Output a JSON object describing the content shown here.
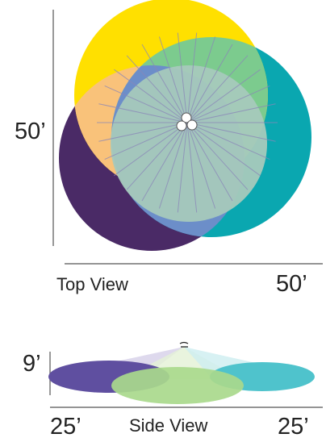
{
  "top_view": {
    "dimension_vertical": "50’",
    "dimension_horizontal": "50’",
    "caption": "Top View",
    "colors": {
      "yellow": "#FFE000",
      "teal": "#0AA7B0",
      "purple": "#4A2A66",
      "orange_overlap": "#F9C27A",
      "green_overlap": "#7CCB8E",
      "center": "#A7C9BC",
      "blue_overlap": "#6C8EC9"
    }
  },
  "side_view": {
    "dimension_height": "9’",
    "dimension_left": "25’",
    "dimension_right": "25’",
    "caption": "Side View",
    "colors": {
      "left_pool": "#5F4FA0",
      "center_pool": "#A9D98C",
      "right_pool": "#4FC3CC"
    }
  }
}
